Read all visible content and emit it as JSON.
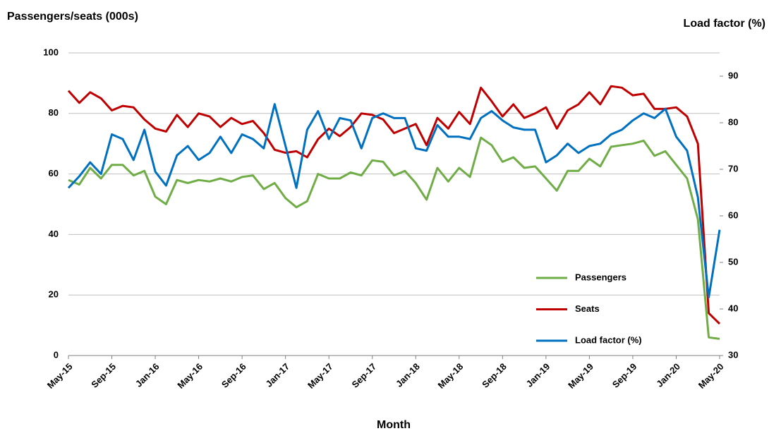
{
  "chart_data": {
    "type": "line",
    "y_label": "Passengers/seats (000s)",
    "y2_label": "Load factor (%)",
    "x_label": "Month",
    "categories": [
      "May-15",
      null,
      null,
      null,
      "Sep-15",
      null,
      null,
      null,
      "Jan-16",
      null,
      null,
      null,
      "May-16",
      null,
      null,
      null,
      "Sep-16",
      null,
      null,
      null,
      "Jan-17",
      null,
      null,
      null,
      "May-17",
      null,
      null,
      null,
      "Sep-17",
      null,
      null,
      null,
      "Jan-18",
      null,
      null,
      null,
      "May-18",
      null,
      null,
      null,
      "Sep-18",
      null,
      null,
      null,
      "Jan-19",
      null,
      null,
      null,
      "May-19",
      null,
      null,
      null,
      "Sep-19",
      null,
      null,
      null,
      "Jan-20",
      null,
      null,
      null,
      "May-20"
    ],
    "series": [
      {
        "name": "Passengers",
        "color": "#70ad47",
        "values": [
          58,
          56.5,
          62,
          58.5,
          63,
          63,
          59.5,
          61,
          52.5,
          50,
          58,
          57,
          58,
          57.5,
          58.5,
          57.5,
          59,
          59.5,
          55,
          57,
          52,
          49,
          51,
          60,
          58.5,
          58.5,
          60.5,
          59.5,
          64.5,
          64,
          59.5,
          61,
          57,
          51.5,
          62,
          57.5,
          62,
          59,
          72,
          69.5,
          64,
          65.5,
          62,
          62.5,
          58.5,
          54.5,
          61,
          61,
          65,
          62.5,
          69,
          69.5,
          70,
          71,
          66,
          67.5,
          63,
          58.5,
          45,
          6,
          5.5
        ]
      },
      {
        "name": "Seats",
        "color": "#c00000",
        "values": [
          87.5,
          83.5,
          87,
          85,
          81,
          82.5,
          82,
          78,
          75,
          74,
          79.5,
          75.5,
          80,
          79,
          75.5,
          78.5,
          76.5,
          77.5,
          73.5,
          68,
          67,
          67.5,
          65.5,
          71.5,
          75,
          72.5,
          75.5,
          80,
          79.5,
          78,
          73.5,
          75,
          76.5,
          69.5,
          78.5,
          75,
          80.5,
          76.5,
          88.5,
          84,
          79,
          83,
          78.5,
          80,
          82,
          75,
          81,
          83,
          87,
          83,
          89,
          88.5,
          86,
          86.5,
          81.5,
          81.5,
          82,
          79,
          70,
          14,
          10.5
        ]
      },
      {
        "name": "Load factor (%)",
        "color": "#0070c0",
        "axis": "y2",
        "values": [
          66,
          68.5,
          71.5,
          69,
          77.5,
          76.5,
          72,
          78.5,
          69.5,
          66.5,
          73,
          75,
          72,
          73.5,
          77,
          73.5,
          77.5,
          76.5,
          74.5,
          84,
          75,
          66,
          78.5,
          82.5,
          76.5,
          81,
          80.5,
          74.5,
          81,
          82,
          81,
          81,
          74.5,
          74,
          79.5,
          77,
          77,
          76.5,
          81,
          82.5,
          80.5,
          79,
          78.5,
          78.5,
          71.5,
          73,
          75.5,
          73.5,
          75,
          75.5,
          77.5,
          78.5,
          80.5,
          82,
          81,
          83,
          77,
          74,
          64,
          42.5,
          57
        ]
      }
    ],
    "ylim": [
      0,
      100
    ],
    "yticks": [
      0,
      20,
      40,
      60,
      80,
      100
    ],
    "y2lim": [
      30,
      95
    ],
    "y2ticks": [
      30,
      40,
      50,
      60,
      70,
      80,
      90
    ],
    "grid": true,
    "legend": "bottom-right"
  }
}
